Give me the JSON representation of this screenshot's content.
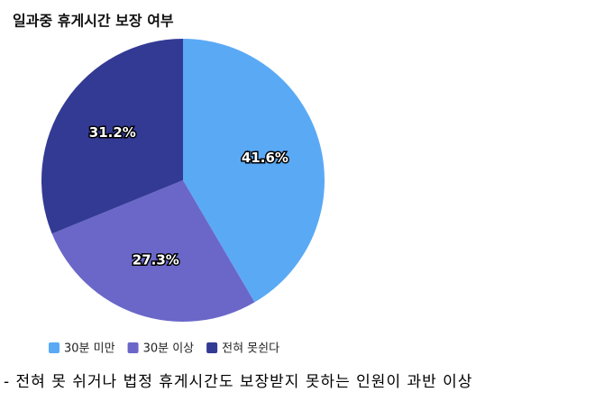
{
  "chart_data": {
    "type": "pie",
    "title": "일과중 휴게시간 보장 여부",
    "categories": [
      "30분 미만",
      "30분 이상",
      "전혀 못쉰다"
    ],
    "values": [
      41.6,
      27.3,
      31.2
    ],
    "value_labels": [
      "41.6%",
      "27.3%",
      "31.2%"
    ],
    "colors": [
      "#5aa9f5",
      "#6a67c9",
      "#333a94"
    ],
    "legend": "bottom-left",
    "caption": "- 전혀 못 쉬거나 법정 휴게시간도 보장받지 못하는 인원이 과반 이상"
  }
}
